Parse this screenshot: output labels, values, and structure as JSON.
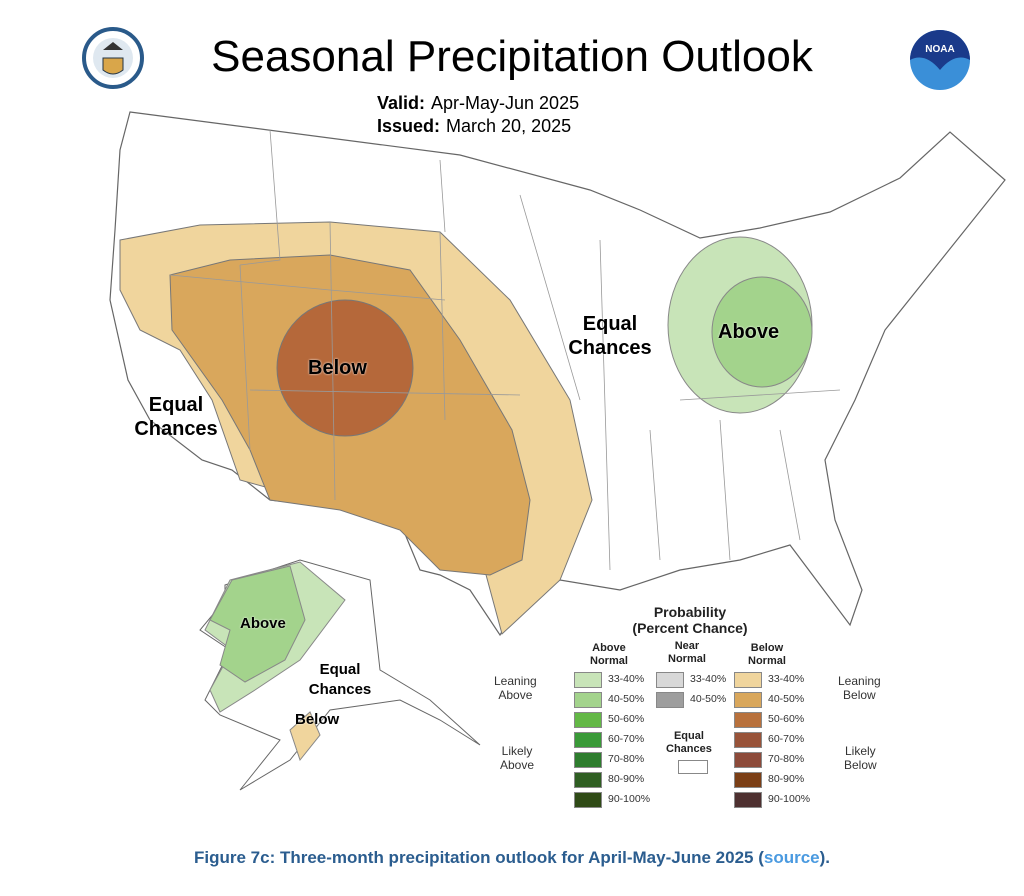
{
  "header": {
    "title": "Seasonal Precipitation Outlook",
    "valid_label": "Valid:",
    "valid_value": "Apr-May-Jun 2025",
    "issued_label": "Issued:",
    "issued_value": "March 20, 2025",
    "logo_right_text": "NOAA"
  },
  "map": {
    "regions": [
      {
        "label": "Below",
        "category": "Below Normal",
        "colors": [
          "#f0d59d",
          "#d9a75c",
          "#b5683a"
        ]
      },
      {
        "label": "Above",
        "category": "Above Normal",
        "colors": [
          "#c8e4b8",
          "#a3d38c"
        ]
      },
      {
        "label_eq1": "Equal",
        "label_eq2": "Chances"
      }
    ],
    "labels": {
      "below": "Below",
      "above": "Above",
      "equal": "Equal",
      "chances": "Chances",
      "ak_above": "Above",
      "ak_equal": "Equal",
      "ak_chances": "Chances",
      "ak_below": "Below"
    }
  },
  "legend": {
    "title1": "Probability",
    "title2": "(Percent Chance)",
    "col_above": [
      "Above",
      "Normal"
    ],
    "col_near": [
      "Near",
      "Normal"
    ],
    "col_below": [
      "Below",
      "Normal"
    ],
    "leaning_above": [
      "Leaning",
      "Above"
    ],
    "likely_above": [
      "Likely",
      "Above"
    ],
    "leaning_below": [
      "Leaning",
      "Below"
    ],
    "likely_below": [
      "Likely",
      "Below"
    ],
    "equal": [
      "Equal",
      "Chances"
    ],
    "above": [
      {
        "range": "33-40%",
        "color": "#c8e4b8"
      },
      {
        "range": "40-50%",
        "color": "#a3d38c"
      },
      {
        "range": "50-60%",
        "color": "#63b846"
      },
      {
        "range": "60-70%",
        "color": "#3a9a38"
      },
      {
        "range": "70-80%",
        "color": "#2e7d2e"
      },
      {
        "range": "80-90%",
        "color": "#2f5e22"
      },
      {
        "range": "90-100%",
        "color": "#2f4a16"
      }
    ],
    "near": [
      {
        "range": "33-40%",
        "color": "#d8d8d8"
      },
      {
        "range": "40-50%",
        "color": "#9e9e9e"
      }
    ],
    "below": [
      {
        "range": "33-40%",
        "color": "#f0d59d"
      },
      {
        "range": "40-50%",
        "color": "#d9a75c"
      },
      {
        "range": "50-60%",
        "color": "#b8713c"
      },
      {
        "range": "60-70%",
        "color": "#985339"
      },
      {
        "range": "70-80%",
        "color": "#8c4a3a"
      },
      {
        "range": "80-90%",
        "color": "#7b3f16"
      },
      {
        "range": "90-100%",
        "color": "#4e3030"
      }
    ]
  },
  "caption": {
    "text": "Figure 7c: Three-month precipitation outlook for April-May-June 2025  (",
    "link": "source",
    "end": ")."
  }
}
